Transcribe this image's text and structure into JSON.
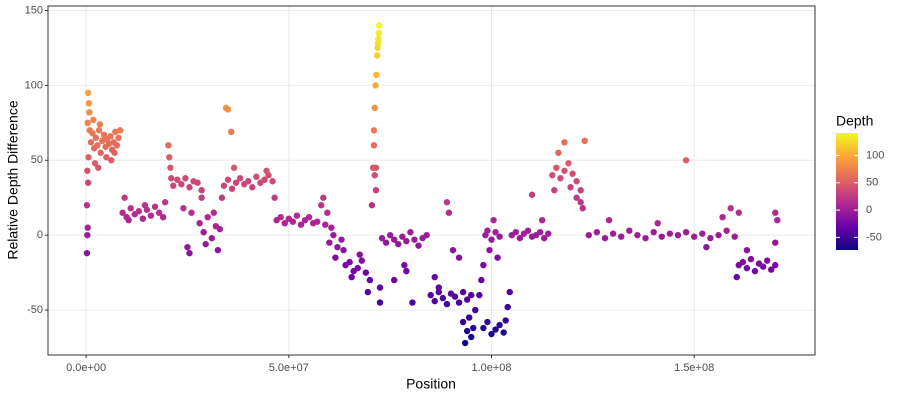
{
  "chart_data": {
    "type": "scatter",
    "x_label": "Position",
    "y_label": "Relative Depth Difference",
    "xlim": [
      -9400000.0,
      179800000.0
    ],
    "ylim": [
      -80,
      153
    ],
    "xticks": [
      {
        "value": 0,
        "label": "0.0e+00"
      },
      {
        "value": 50000000.0,
        "label": "5.0e+07"
      },
      {
        "value": 100000000.0,
        "label": "1.0e+08"
      },
      {
        "value": 150000000.0,
        "label": "1.5e+08"
      }
    ],
    "yticks": [
      -50,
      0,
      50,
      100,
      150
    ],
    "grid": true,
    "color_scale": {
      "title": "Depth",
      "colors": [
        "#0d0887",
        "#6a00a8",
        "#b12a90",
        "#e16462",
        "#fca636",
        "#f0f921"
      ],
      "limits": [
        -73,
        141
      ],
      "ticks": [
        -50,
        0,
        50,
        100
      ]
    },
    "x": [
      200000.0,
      300000.0,
      400000.0,
      200000.0,
      500000.0,
      300000.0,
      600000.0,
      400000.0,
      700000.0,
      500000.0,
      800000.0,
      900000.0,
      1200000.0,
      1600000.0,
      2000000.0,
      2400000.0,
      2800000.0,
      3200000.0,
      3600000.0,
      4000000.0,
      4400000.0,
      4800000.0,
      5200000.0,
      5600000.0,
      6000000.0,
      6400000.0,
      6800000.0,
      7200000.0,
      7600000.0,
      8000000.0,
      8400000.0,
      2200000.0,
      3000000.0,
      5000000.0,
      6200000.0,
      7000000.0,
      1800000.0,
      3400000.0,
      9000000.0,
      10000000.0,
      11000000.0,
      12000000.0,
      13000000.0,
      14000000.0,
      15000000.0,
      16000000.0,
      17000000.0,
      18000000.0,
      19000000.0,
      9500000.0,
      10500000.0,
      14500000.0,
      19500000.0,
      20300000.0,
      20500000.0,
      20800000.0,
      21000000.0,
      21500000.0,
      22500000.0,
      23500000.0,
      24500000.0,
      25500000.0,
      26500000.0,
      27500000.0,
      28500000.0,
      24000000.0,
      25000000.0,
      25500000.0,
      26000000.0,
      28000000.0,
      29000000.0,
      30000000.0,
      31000000.0,
      32000000.0,
      33000000.0,
      29500000.0,
      31500000.0,
      28500000.0,
      32500000.0,
      34500000.0,
      35000000.0,
      35800000.0,
      34000000.0,
      35000000.0,
      36000000.0,
      37000000.0,
      38000000.0,
      39000000.0,
      40000000.0,
      41000000.0,
      42000000.0,
      43000000.0,
      44000000.0,
      45000000.0,
      46000000.0,
      36500000.0,
      44500000.0,
      46500000.0,
      33500000.0,
      47000000.0,
      48000000.0,
      49000000.0,
      50000000.0,
      51000000.0,
      52000000.0,
      53000000.0,
      54000000.0,
      55000000.0,
      56000000.0,
      57000000.0,
      59000000.0,
      58000000.0,
      58500000.0,
      59500000.0,
      60000000.0,
      61000000.0,
      62000000.0,
      63000000.0,
      61500000.0,
      60500000.0,
      63500000.0,
      64000000.0,
      65000000.0,
      66000000.0,
      67000000.0,
      68000000.0,
      69000000.0,
      67500000.0,
      65500000.0,
      70000000.0,
      69500000.0,
      70500000.0,
      70800000.0,
      71000000.0,
      71200000.0,
      71400000.0,
      71600000.0,
      71800000.0,
      72000000.0,
      72200000.0,
      72300000.0,
      72100000.0,
      71900000.0,
      71000000.0,
      71200000.0,
      71500000.0,
      72500000.0,
      72500000.0,
      71500000.0,
      73000000.0,
      74000000.0,
      75000000.0,
      76000000.0,
      77000000.0,
      78000000.0,
      79000000.0,
      80000000.0,
      81000000.0,
      82000000.0,
      83000000.0,
      84000000.0,
      78500000.0,
      79000000.0,
      76000000.0,
      80500000.0,
      85000000.0,
      86000000.0,
      87000000.0,
      88000000.0,
      89000000.0,
      90000000.0,
      91000000.0,
      92000000.0,
      93000000.0,
      94000000.0,
      95000000.0,
      89000000.0,
      89500000.0,
      90500000.0,
      86000000.0,
      87000000.0,
      92000000.0,
      96000000.0,
      93000000.0,
      94000000.0,
      95000000.0,
      95500000.0,
      93500000.0,
      94500000.0,
      97000000.0,
      97500000.0,
      98000000.0,
      98500000.0,
      99000000.0,
      100000000.0,
      101000000.0,
      102000000.0,
      100500000.0,
      99500000.0,
      101500000.0,
      98000000.0,
      99000000.0,
      100000000.0,
      101000000.0,
      102000000.0,
      103000000.0,
      103500000.0,
      104000000.0,
      104500000.0,
      105000000.0,
      106000000.0,
      107000000.0,
      108000000.0,
      109000000.0,
      110000000.0,
      111000000.0,
      112000000.0,
      113000000.0,
      114000000.0,
      110000000.0,
      112500000.0,
      115000000.0,
      116000000.0,
      117000000.0,
      118000000.0,
      119000000.0,
      120000000.0,
      121000000.0,
      116500000.0,
      118000000.0,
      119500000.0,
      115500000.0,
      121000000.0,
      122000000.0,
      122500000.0,
      123000000.0,
      122000000.0,
      124000000.0,
      126000000.0,
      128000000.0,
      130000000.0,
      132000000.0,
      134000000.0,
      136000000.0,
      138000000.0,
      140000000.0,
      142000000.0,
      144000000.0,
      146000000.0,
      148000000.0,
      150000000.0,
      152000000.0,
      154000000.0,
      156000000.0,
      158000000.0,
      160000000.0,
      129000000.0,
      141000000.0,
      153000000.0,
      148000000.0,
      157000000.0,
      159000000.0,
      161000000.0,
      161000000.0,
      162000000.0,
      163000000.0,
      164000000.0,
      165000000.0,
      166000000.0,
      167000000.0,
      168000000.0,
      169000000.0,
      170000000.0,
      160500000.0,
      163000000.0,
      170000000.0,
      170500000.0,
      170000000.0
    ],
    "values": [
      -12,
      0,
      5,
      20,
      35,
      43,
      52,
      75,
      88,
      95,
      82,
      70,
      62,
      68,
      58,
      65,
      60,
      70,
      55,
      63,
      67,
      59,
      64,
      61,
      66,
      57,
      62,
      69,
      60,
      65,
      70,
      48,
      45,
      52,
      50,
      55,
      77,
      74,
      15,
      12,
      18,
      14,
      16,
      11,
      17,
      13,
      19,
      15,
      12,
      25,
      10,
      20,
      22,
      60,
      52,
      45,
      38,
      33,
      37,
      34,
      38,
      32,
      36,
      35,
      30,
      18,
      -8,
      -12,
      15,
      8,
      2,
      12,
      -2,
      6,
      4,
      -6,
      15,
      25,
      -10,
      85,
      84,
      69,
      33,
      37,
      31,
      35,
      38,
      34,
      36,
      32,
      39,
      35,
      37,
      40,
      36,
      45,
      43,
      25,
      25,
      10,
      12,
      8,
      11,
      9,
      13,
      7,
      10,
      12,
      8,
      9,
      7,
      20,
      25,
      15,
      -5,
      0,
      -8,
      -3,
      -15,
      5,
      -10,
      -20,
      -18,
      -24,
      -22,
      -17,
      -25,
      -13,
      -28,
      -30,
      -38,
      20,
      45,
      70,
      85,
      100,
      107,
      120,
      128,
      135,
      140,
      131,
      125,
      60,
      40,
      30,
      -45,
      -35,
      45,
      -2,
      -5,
      0,
      -3,
      -6,
      -1,
      -4,
      2,
      -3,
      -7,
      -2,
      0,
      -20,
      -24,
      -30,
      -45,
      -40,
      -44,
      -38,
      -42,
      -46,
      -39,
      -41,
      -45,
      -38,
      -43,
      -40,
      22,
      15,
      -10,
      -28,
      -35,
      -15,
      -50,
      -58,
      -64,
      -68,
      -62,
      -72,
      -55,
      -40,
      -30,
      -20,
      0,
      3,
      -3,
      2,
      -1,
      10,
      -10,
      -15,
      -62,
      -58,
      -66,
      -63,
      -60,
      -65,
      -57,
      -48,
      -38,
      0,
      2,
      -2,
      1,
      3,
      -1,
      0,
      2,
      -2,
      1,
      27,
      10,
      40,
      45,
      38,
      43,
      48,
      41,
      36,
      55,
      62,
      32,
      30,
      25,
      22,
      18,
      63,
      30,
      0,
      2,
      -2,
      1,
      -1,
      3,
      0,
      -2,
      2,
      -1,
      1,
      0,
      2,
      -1,
      1,
      -2,
      0,
      3,
      -1,
      10,
      8,
      -8,
      50,
      12,
      18,
      15,
      -20,
      -18,
      -22,
      -16,
      -24,
      -19,
      -21,
      -17,
      -23,
      -20,
      -28,
      -10,
      15,
      10,
      -5
    ]
  }
}
